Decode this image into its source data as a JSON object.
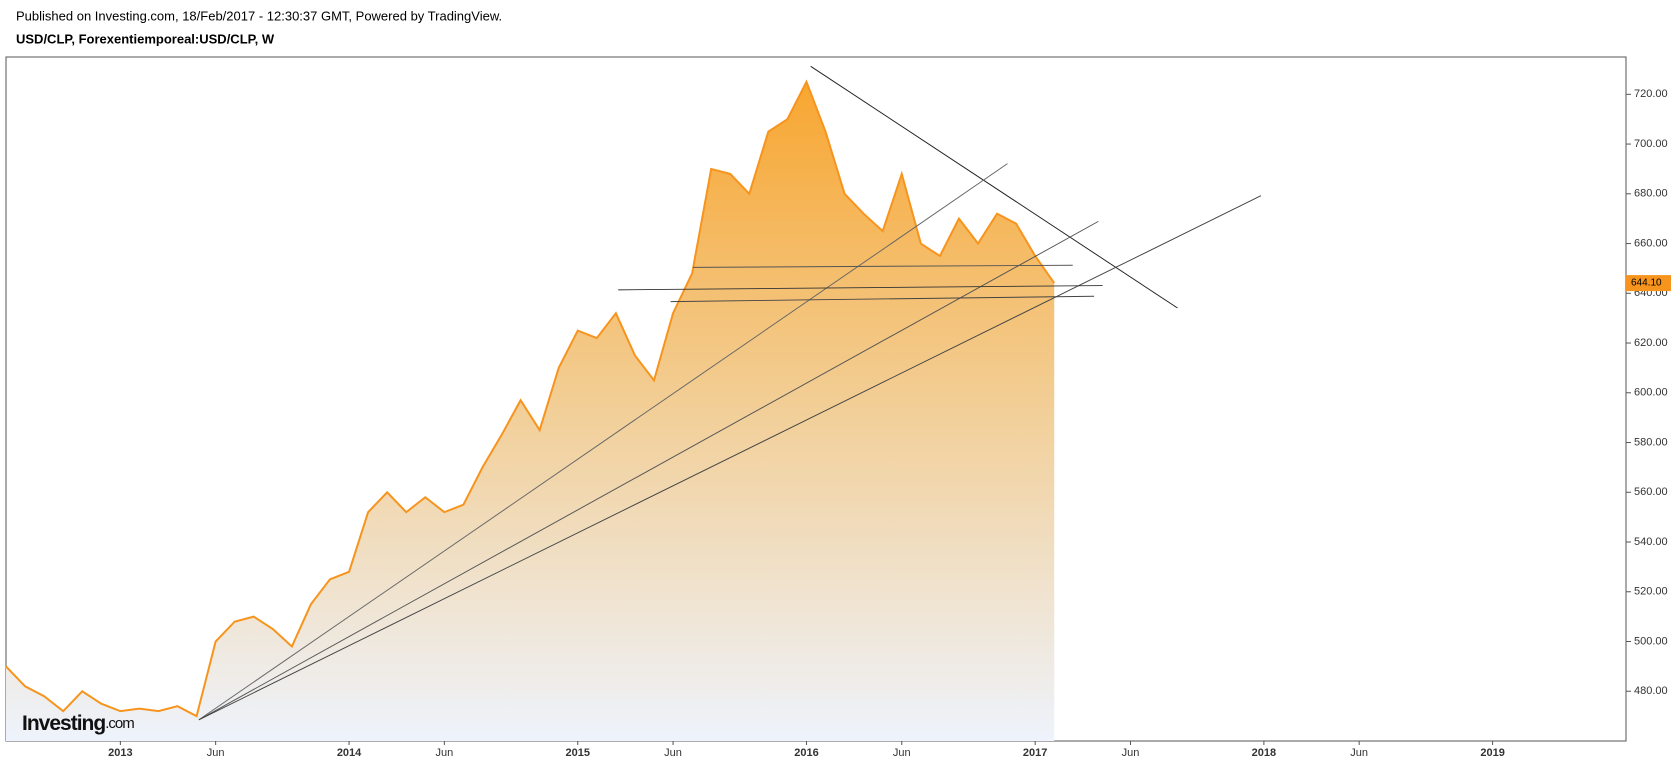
{
  "header": {
    "published": "Published on Investing.com, 18/Feb/2017 - 12:30:37 GMT, Powered by TradingView.",
    "symbol": "USD/CLP, Forexentiemporeal:USD/CLP, W"
  },
  "logo": {
    "name": "Investing",
    "suffix": ".com"
  },
  "chart_data": {
    "type": "area",
    "x": [
      "2012-07",
      "2012-08",
      "2012-09",
      "2012-10",
      "2012-11",
      "2012-12",
      "2013-01",
      "2013-02",
      "2013-03",
      "2013-04",
      "2013-05",
      "2013-06",
      "2013-07",
      "2013-08",
      "2013-09",
      "2013-10",
      "2013-11",
      "2013-12",
      "2014-01",
      "2014-02",
      "2014-03",
      "2014-04",
      "2014-05",
      "2014-06",
      "2014-07",
      "2014-08",
      "2014-09",
      "2014-10",
      "2014-11",
      "2014-12",
      "2015-01",
      "2015-02",
      "2015-03",
      "2015-04",
      "2015-05",
      "2015-06",
      "2015-07",
      "2015-08",
      "2015-09",
      "2015-10",
      "2015-11",
      "2015-12",
      "2016-01",
      "2016-02",
      "2016-03",
      "2016-04",
      "2016-05",
      "2016-06",
      "2016-07",
      "2016-08",
      "2016-09",
      "2016-10",
      "2016-11",
      "2016-12",
      "2017-01",
      "2017-02"
    ],
    "series": [
      {
        "name": "USD/CLP",
        "color": "#f7941d",
        "values": [
          490,
          482,
          478,
          472,
          480,
          475,
          472,
          473,
          472,
          474,
          470,
          500,
          508,
          510,
          505,
          498,
          515,
          525,
          528,
          552,
          560,
          552,
          558,
          552,
          555,
          570,
          583,
          597,
          585,
          610,
          625,
          622,
          632,
          615,
          605,
          632,
          648,
          690,
          688,
          680,
          705,
          710,
          725,
          705,
          680,
          672,
          665,
          688,
          660,
          655,
          670,
          660,
          672,
          668,
          655,
          644.1
        ]
      }
    ],
    "xlim": [
      "2012-07",
      "2019-08"
    ],
    "xticks": [
      {
        "value": "2013-01",
        "label": "2013"
      },
      {
        "value": "2013-06",
        "label": "Jun"
      },
      {
        "value": "2014-01",
        "label": "2014"
      },
      {
        "value": "2014-06",
        "label": "Jun"
      },
      {
        "value": "2015-01",
        "label": "2015"
      },
      {
        "value": "2015-06",
        "label": "Jun"
      },
      {
        "value": "2016-01",
        "label": "2016"
      },
      {
        "value": "2016-06",
        "label": "Jun"
      },
      {
        "value": "2017-01",
        "label": "2017"
      },
      {
        "value": "2017-06",
        "label": "Jun"
      },
      {
        "value": "2018-01",
        "label": "2018"
      },
      {
        "value": "2018-06",
        "label": "Jun"
      },
      {
        "value": "2019-01",
        "label": "2019"
      }
    ],
    "ylim": [
      460,
      735
    ],
    "yticks": [
      {
        "value": 480,
        "label": "480.00"
      },
      {
        "value": 500,
        "label": "500.00"
      },
      {
        "value": 520,
        "label": "520.00"
      },
      {
        "value": 540,
        "label": "540.00"
      },
      {
        "value": 560,
        "label": "560.00"
      },
      {
        "value": 580,
        "label": "580.00"
      },
      {
        "value": 600,
        "label": "600.00"
      },
      {
        "value": 620,
        "label": "620.00"
      },
      {
        "value": 640,
        "label": "640.00"
      },
      {
        "value": 660,
        "label": "660.00"
      },
      {
        "value": 680,
        "label": "680.00"
      },
      {
        "value": 700,
        "label": "700.00"
      },
      {
        "value": 720,
        "label": "720.00"
      }
    ],
    "last_price": {
      "value": 644.1,
      "label": "644.10"
    }
  }
}
